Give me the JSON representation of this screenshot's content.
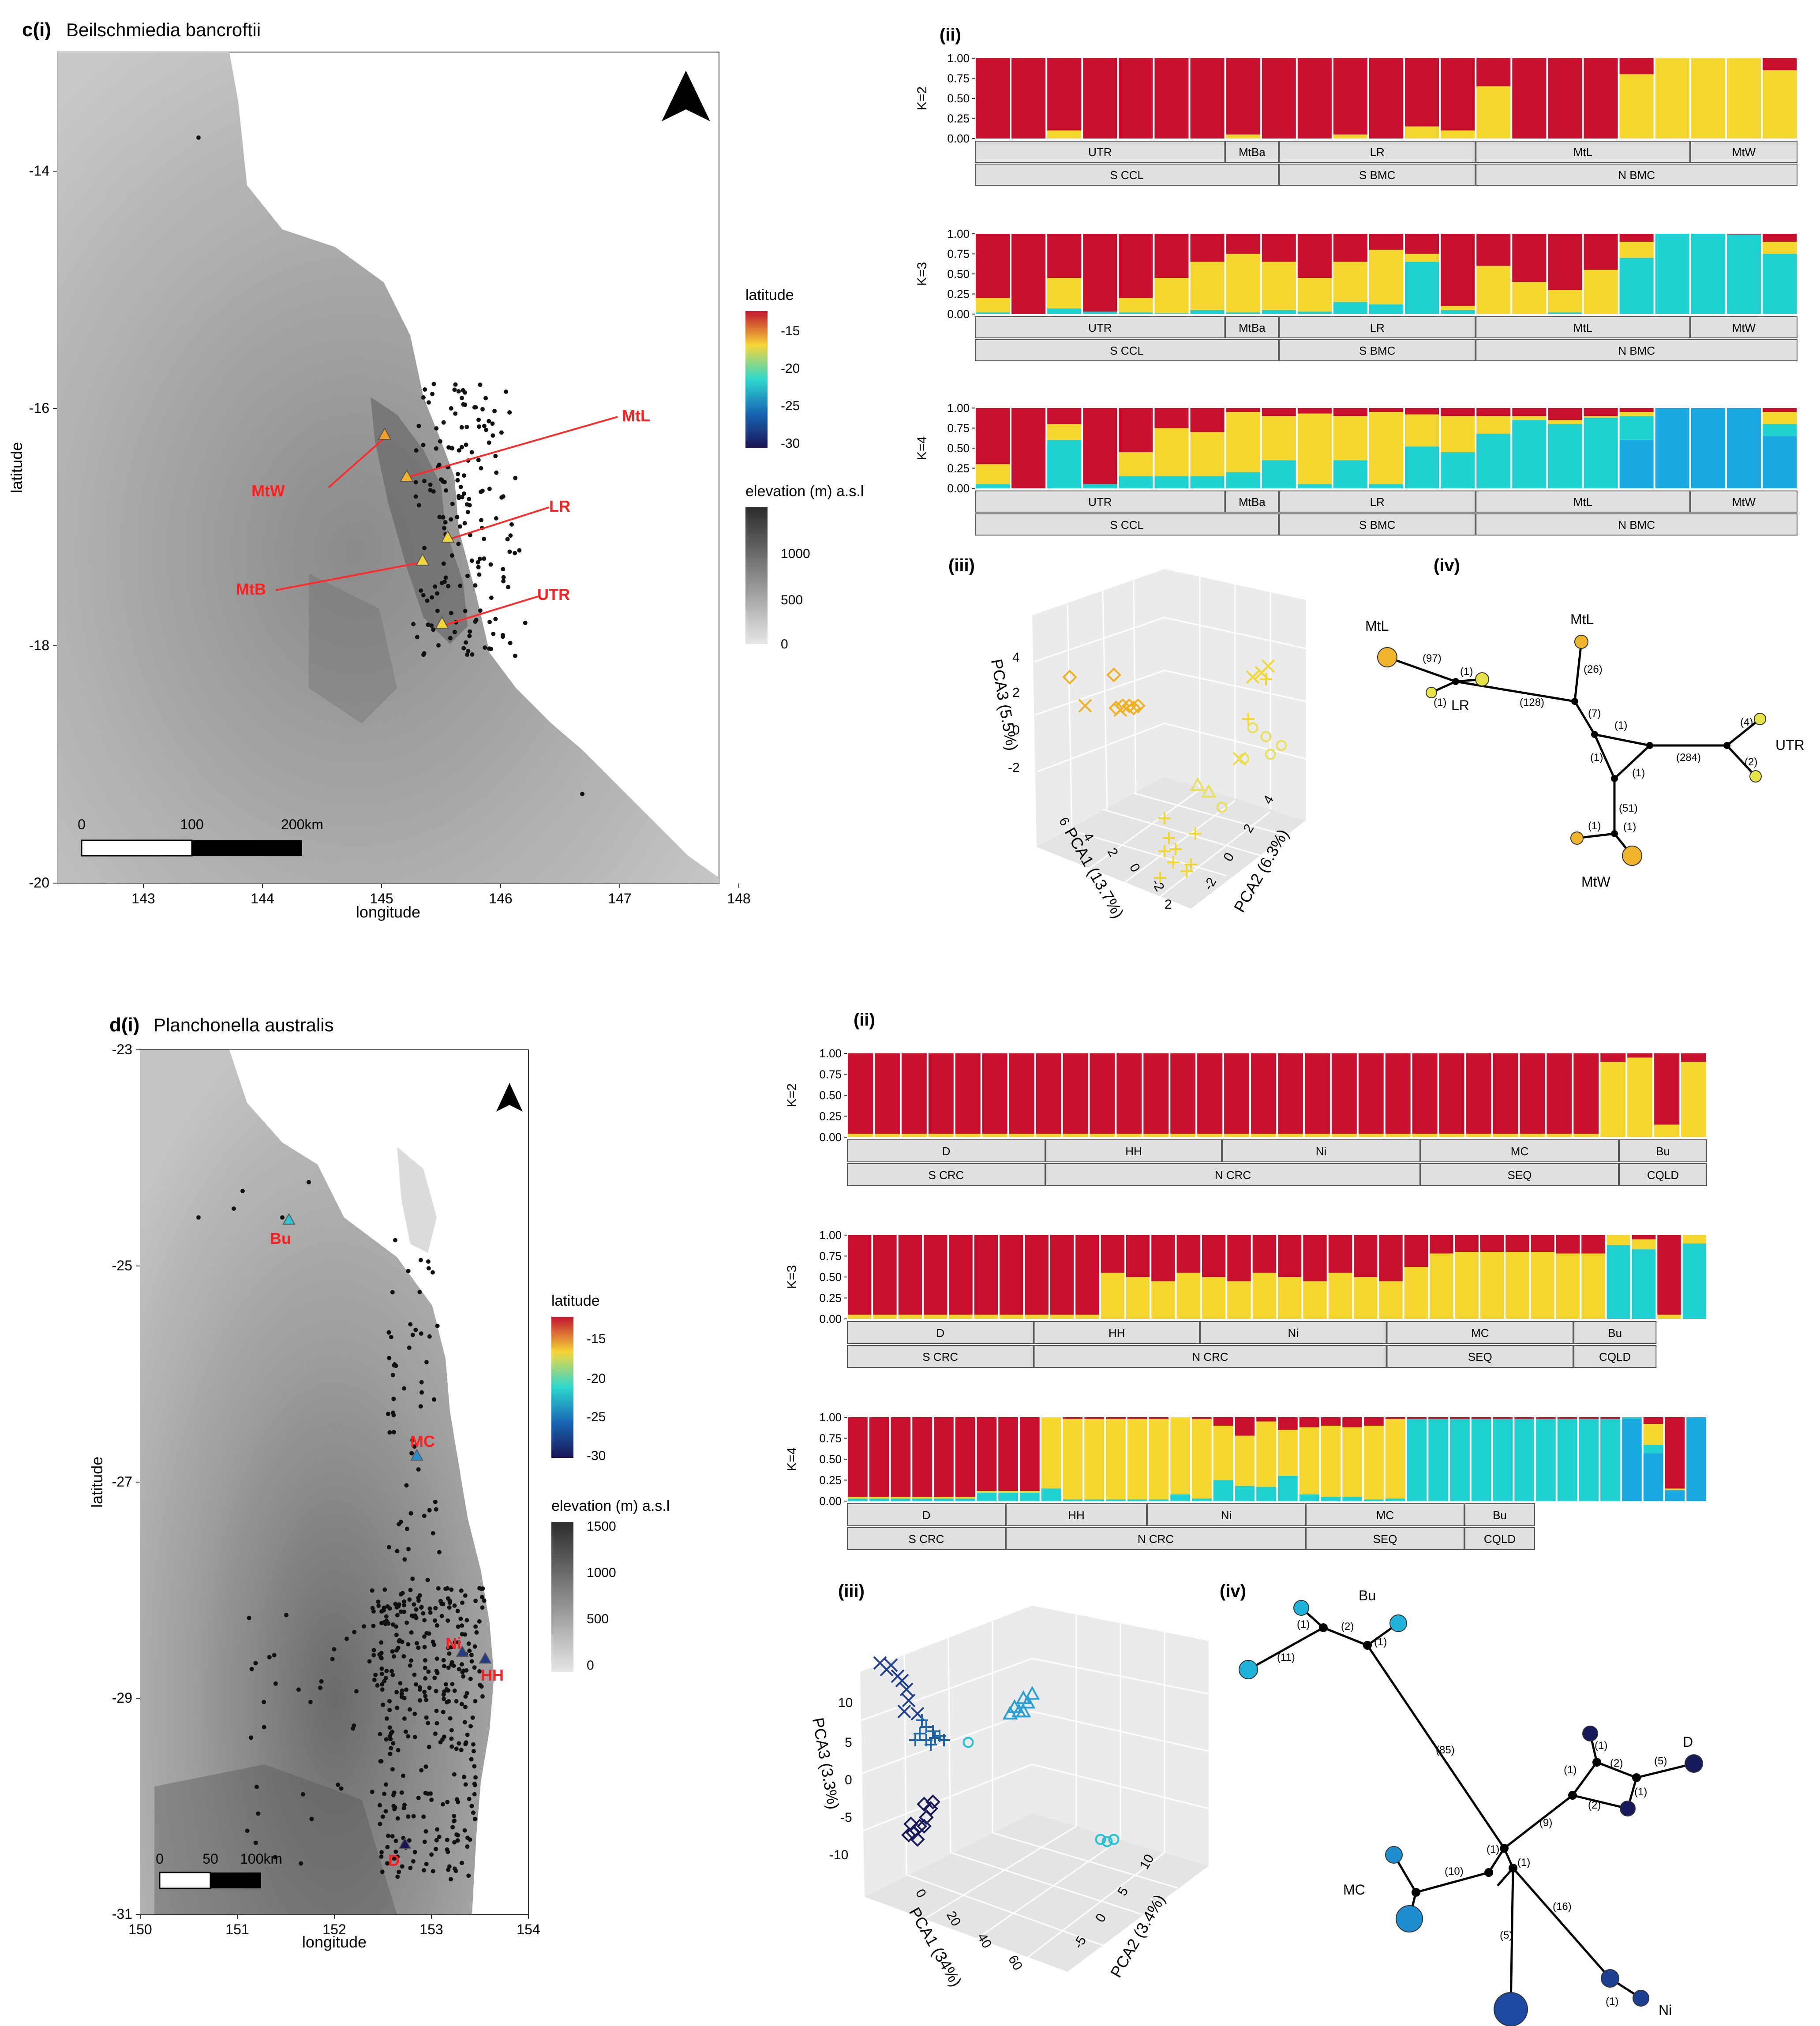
{
  "panel_c": {
    "title_label": "c(i)",
    "species": "Beilschmiedia bancroftii",
    "map": {
      "xlabel": "longitude",
      "ylabel": "latitude",
      "xticks": [
        "143",
        "144",
        "145",
        "146",
        "147",
        "148"
      ],
      "yticks": [
        "-14",
        "-16",
        "-18",
        "-20"
      ],
      "sites": [
        {
          "label": "MtL",
          "lon": 145.25,
          "lat": -16.6
        },
        {
          "label": "MtW",
          "lon": 145.05,
          "lat": -16.27
        },
        {
          "label": "LR",
          "lon": 145.6,
          "lat": -17.13
        },
        {
          "label": "MtB",
          "lon": 145.4,
          "lat": -17.32
        },
        {
          "label": "UTR",
          "lon": 145.55,
          "lat": -17.83
        }
      ],
      "scalebar_labels": [
        "0",
        "100",
        "200km"
      ],
      "legend_latitude": {
        "title": "latitude",
        "ticks": [
          "-15",
          "-20",
          "-25",
          "-30"
        ]
      },
      "legend_elevation": {
        "title": "elevation (m) a.s.l",
        "ticks": [
          "1000",
          "500",
          "0"
        ]
      }
    },
    "structure_label": "(ii)",
    "structure_yticks": [
      "1.00",
      "0.75",
      "0.50",
      "0.25",
      "0.00"
    ],
    "structure_k": [
      "K=2",
      "K=3",
      "K=4"
    ],
    "structure_pops": [
      "UTR",
      "MtBa",
      "LR",
      "MtL",
      "MtW"
    ],
    "structure_groups": [
      "S CCL",
      "S BMC",
      "N BMC"
    ],
    "pca_label": "(iii)",
    "pca_axes": {
      "pca1": "PCA1 (13.7%)",
      "pca2": "PCA2 (6.3%)",
      "pca3": "PCA3 (5.5%)"
    },
    "pca_ticks": {
      "pca3": [
        "4",
        "2",
        "0",
        "-2"
      ],
      "pca1": [
        "6",
        "4",
        "2",
        "0",
        "-2",
        "2"
      ],
      "pca2": [
        "4",
        "2",
        "0",
        "-2"
      ]
    },
    "network_label": "(iv)",
    "network_nodes": [
      "MtL",
      "MtL",
      "LR",
      "UTR",
      "MtW"
    ],
    "network_edges": [
      "(97)",
      "(1)",
      "(1)",
      "(128)",
      "(26)",
      "(7)",
      "(1)",
      "(1)",
      "(1)",
      "(284)",
      "(4)",
      "(2)",
      "(51)",
      "(1)",
      "(1)"
    ]
  },
  "panel_d": {
    "title_label": "d(i)",
    "species": "Planchonella australis",
    "map": {
      "xlabel": "longitude",
      "ylabel": "latitude",
      "xticks": [
        "150",
        "151",
        "152",
        "153",
        "154"
      ],
      "yticks": [
        "-23",
        "-25",
        "-27",
        "-29",
        "-31"
      ],
      "sites": [
        {
          "label": "Bu",
          "lon": 151.6,
          "lat": -24.6
        },
        {
          "label": "MC",
          "lon": 152.85,
          "lat": -26.75
        },
        {
          "label": "Ni",
          "lon": 153.3,
          "lat": -28.6
        },
        {
          "label": "HH",
          "lon": 153.58,
          "lat": -28.7
        },
        {
          "label": "D",
          "lon": 152.7,
          "lat": -30.35
        }
      ],
      "scalebar_labels": [
        "0",
        "50",
        "100km"
      ],
      "legend_latitude": {
        "title": "latitude",
        "ticks": [
          "-15",
          "-20",
          "-25",
          "-30"
        ]
      },
      "legend_elevation": {
        "title": "elevation (m) a.s.l",
        "ticks": [
          "1500",
          "1000",
          "500",
          "0"
        ]
      }
    },
    "structure_label": "(ii)",
    "structure_yticks": [
      "1.00",
      "0.75",
      "0.50",
      "0.25",
      "0.00"
    ],
    "structure_k": [
      "K=2",
      "K=3",
      "K=4"
    ],
    "structure_pops": [
      "D",
      "HH",
      "Ni",
      "MC",
      "Bu"
    ],
    "structure_groups": [
      "S CRC",
      "N CRC",
      "SEQ",
      "CQLD"
    ],
    "pca_label": "(iii)",
    "pca_axes": {
      "pca1": "PCA1 (34%)",
      "pca2": "PCA2 (3.4%)",
      "pca3": "PCA3 (3.3%)"
    },
    "pca_ticks": {
      "pca3": [
        "10",
        "5",
        "0",
        "-5",
        "-10"
      ],
      "pca1": [
        "0",
        "20",
        "40",
        "60"
      ],
      "pca2": [
        "10",
        "5",
        "0",
        "-5"
      ]
    },
    "network_label": "(iv)",
    "network_nodes": [
      "Bu",
      "D",
      "MC",
      "HH",
      "Ni"
    ],
    "network_edges": [
      "(1)",
      "(2)",
      "(1)",
      "(11)",
      "(85)",
      "(1)",
      "(2)",
      "(5)",
      "(1)",
      "(1)",
      "(2)",
      "(9)",
      "(1)",
      "(1)",
      "(10)",
      "(5)",
      "(16)",
      "(1)"
    ]
  },
  "colors": {
    "red": "#c8102e",
    "yellow": "#f5d62e",
    "cyan": "#1fd0d0",
    "blue": "#19a9e0"
  }
}
